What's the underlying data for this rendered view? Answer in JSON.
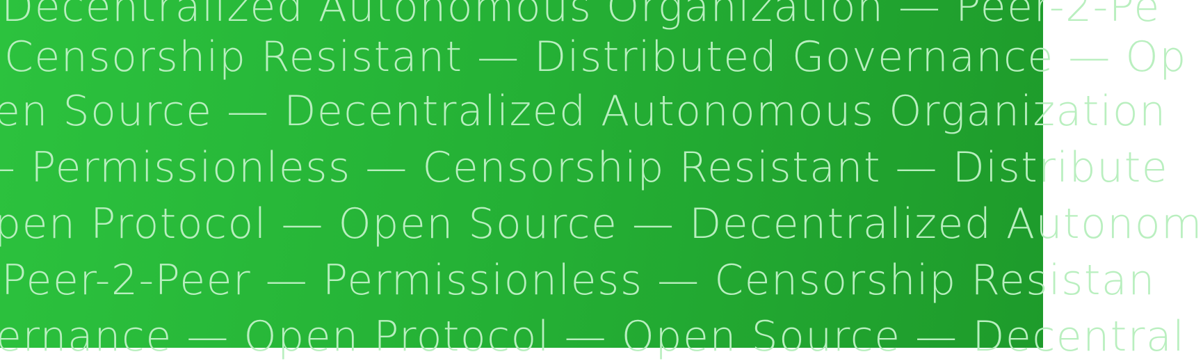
{
  "banner": {
    "lines": [
      "Decentralized Autonomous Organization — Peer-2-Pe",
      "Censorship Resistant — Distributed Governance — Op",
      "en Source — Decentralized Autonomous Organization",
      "– Permissionless — Censorship Resistant — Distribute",
      "pen Protocol — Open Source — Decentralized Autonom",
      "Peer-2-Peer — Permissionless — Censorship Resistan",
      "ernance — Open Protocol — Open Source — Decentral"
    ],
    "colors": {
      "background_start": "#2cc23e",
      "background_end": "#1e9b2b",
      "text": "#b9efbf"
    }
  }
}
